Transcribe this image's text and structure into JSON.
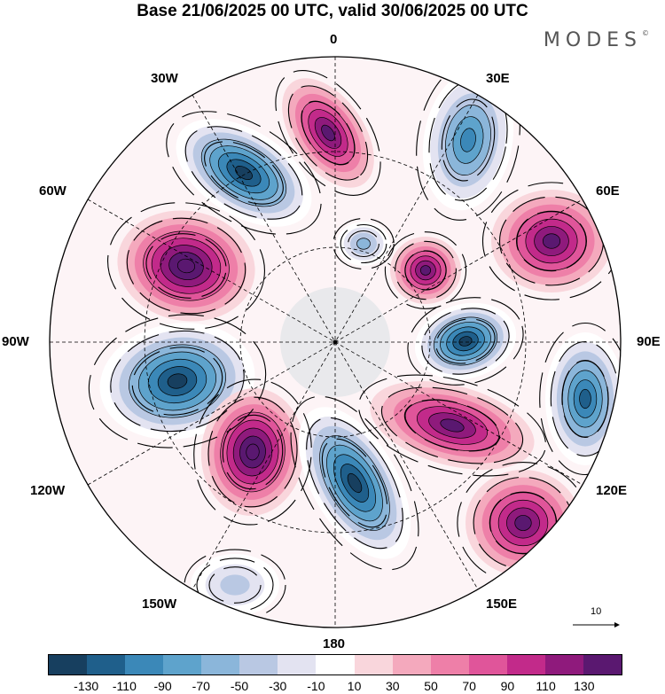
{
  "title": "Base 21/06/2025 00 UTC, valid 30/06/2025 00 UTC",
  "brand": "MODES",
  "brand_mark": "©",
  "longitude_labels": {
    "n": "0",
    "ne30": "30E",
    "ne60": "60E",
    "e": "90E",
    "se120": "120E",
    "se150": "150E",
    "s": "180",
    "sw150": "150W",
    "sw120": "120W",
    "w": "90W",
    "nw60": "60W",
    "nw30": "30W"
  },
  "reference_vector": "10",
  "colorbar": {
    "colors": [
      "#173f5f",
      "#1f5f8b",
      "#3b88b8",
      "#5ea3cc",
      "#8bb6da",
      "#b9c8e3",
      "#e3e3f1",
      "#ffffff",
      "#f9d6dc",
      "#f4a9bd",
      "#ee7fa8",
      "#e0559a",
      "#c22a8a",
      "#8f1a7c",
      "#5a1870"
    ],
    "ticks": [
      "-130",
      "-110",
      "-90",
      "-70",
      "-50",
      "-30",
      "-10",
      "10",
      "30",
      "50",
      "70",
      "90",
      "110",
      "130"
    ]
  },
  "anomaly_centers": [
    {
      "sign": "negative",
      "value": -130,
      "lon": "30W-45W"
    },
    {
      "sign": "positive",
      "value": 110,
      "lon": "10W-20W"
    },
    {
      "sign": "negative",
      "value": -90,
      "lon": "20E-30E"
    },
    {
      "sign": "positive",
      "value": 110,
      "lon": "60E"
    },
    {
      "sign": "positive",
      "value": 130,
      "lon": "60W"
    },
    {
      "sign": "negative",
      "value": -50,
      "lon": "10E"
    },
    {
      "sign": "positive",
      "value": 110,
      "lon": "40E"
    },
    {
      "sign": "negative",
      "value": -130,
      "lon": "80E-90E"
    },
    {
      "sign": "negative",
      "value": -130,
      "lon": "90W-100W"
    },
    {
      "sign": "negative",
      "value": -110,
      "lon": "100E"
    },
    {
      "sign": "positive",
      "value": 110,
      "lon": "130E"
    },
    {
      "sign": "positive",
      "value": 130,
      "lon": "140W"
    },
    {
      "sign": "negative",
      "value": -130,
      "lon": "165E-175E"
    },
    {
      "sign": "positive",
      "value": 110,
      "lon": "140E"
    },
    {
      "sign": "negative",
      "value": -30,
      "lon": "150W"
    }
  ]
}
